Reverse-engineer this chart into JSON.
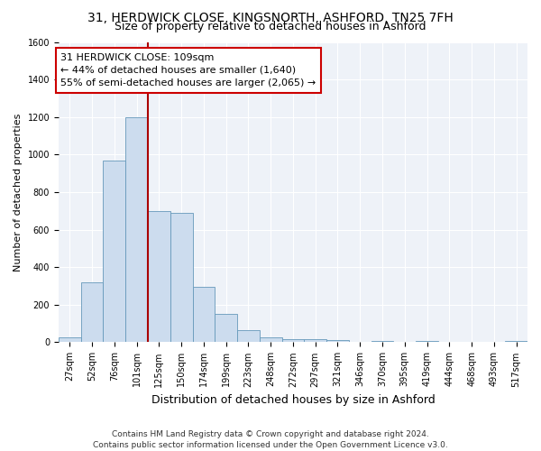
{
  "title1": "31, HERDWICK CLOSE, KINGSNORTH, ASHFORD, TN25 7FH",
  "title2": "Size of property relative to detached houses in Ashford",
  "xlabel": "Distribution of detached houses by size in Ashford",
  "ylabel": "Number of detached properties",
  "bar_color": "#ccdcee",
  "bar_edgecolor": "#6699bb",
  "background_color": "#eef2f8",
  "grid_color": "#ffffff",
  "fig_background": "#ffffff",
  "categories": [
    "27sqm",
    "52sqm",
    "76sqm",
    "101sqm",
    "125sqm",
    "150sqm",
    "174sqm",
    "199sqm",
    "223sqm",
    "248sqm",
    "272sqm",
    "297sqm",
    "321sqm",
    "346sqm",
    "370sqm",
    "395sqm",
    "419sqm",
    "444sqm",
    "468sqm",
    "493sqm",
    "517sqm"
  ],
  "values": [
    25,
    320,
    970,
    1200,
    700,
    690,
    295,
    150,
    65,
    25,
    18,
    18,
    10,
    0,
    8,
    0,
    8,
    0,
    0,
    0,
    8
  ],
  "ylim": [
    0,
    1600
  ],
  "yticks": [
    0,
    200,
    400,
    600,
    800,
    1000,
    1200,
    1400,
    1600
  ],
  "property_line_color": "#aa0000",
  "annotation_line1": "31 HERDWICK CLOSE: 109sqm",
  "annotation_line2": "← 44% of detached houses are smaller (1,640)",
  "annotation_line3": "55% of semi-detached houses are larger (2,065) →",
  "annotation_box_color": "#ffffff",
  "annotation_box_edgecolor": "#cc0000",
  "footer1": "Contains HM Land Registry data © Crown copyright and database right 2024.",
  "footer2": "Contains public sector information licensed under the Open Government Licence v3.0.",
  "title_fontsize": 10,
  "subtitle_fontsize": 9,
  "xlabel_fontsize": 9,
  "ylabel_fontsize": 8,
  "tick_fontsize": 7,
  "annotation_fontsize": 8,
  "footer_fontsize": 6.5
}
